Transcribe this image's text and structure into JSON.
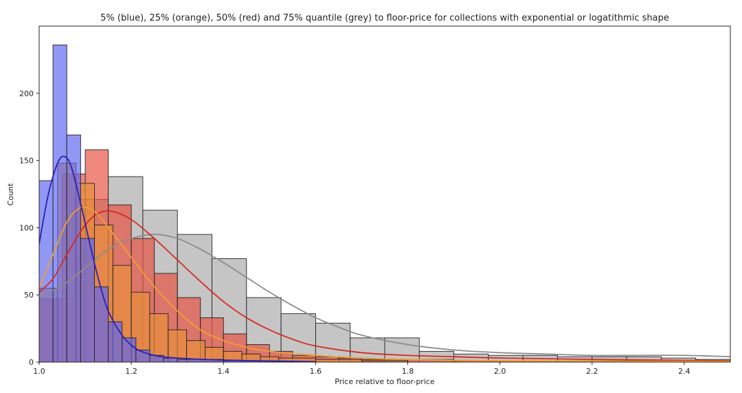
{
  "chart_data": {
    "type": "histogram",
    "title": "5% (blue), 25% (orange), 50% (red) and 75% quantile (grey) to floor-price for collections with exponential or logatithmic shape",
    "xlabel": "Price relative to floor-price",
    "ylabel": "Count",
    "xlim": [
      1.0,
      2.5
    ],
    "ylim": [
      0,
      250
    ],
    "xticks": [
      "1.0",
      "1.2",
      "1.4",
      "1.6",
      "1.8",
      "2.0",
      "2.2",
      "2.4"
    ],
    "yticks": [
      "0",
      "50",
      "100",
      "150",
      "200"
    ],
    "grid": false,
    "series": [
      {
        "name": "75% quantile",
        "color": "#a9a9a9",
        "line_color": "#8c8c8c",
        "bins": [
          {
            "x0": 1.0,
            "x1": 1.075,
            "count": 47
          },
          {
            "x0": 1.075,
            "x1": 1.15,
            "count": 121
          },
          {
            "x0": 1.15,
            "x1": 1.225,
            "count": 138
          },
          {
            "x0": 1.225,
            "x1": 1.3,
            "count": 113
          },
          {
            "x0": 1.3,
            "x1": 1.375,
            "count": 95
          },
          {
            "x0": 1.375,
            "x1": 1.45,
            "count": 77
          },
          {
            "x0": 1.45,
            "x1": 1.525,
            "count": 48
          },
          {
            "x0": 1.525,
            "x1": 1.6,
            "count": 36
          },
          {
            "x0": 1.6,
            "x1": 1.675,
            "count": 29
          },
          {
            "x0": 1.675,
            "x1": 1.75,
            "count": 18
          },
          {
            "x0": 1.75,
            "x1": 1.825,
            "count": 18
          },
          {
            "x0": 1.825,
            "x1": 1.9,
            "count": 8
          },
          {
            "x0": 1.9,
            "x1": 1.975,
            "count": 6
          },
          {
            "x0": 1.975,
            "x1": 2.05,
            "count": 5
          },
          {
            "x0": 2.05,
            "x1": 2.125,
            "count": 5
          },
          {
            "x0": 2.125,
            "x1": 2.2,
            "count": 4
          },
          {
            "x0": 2.2,
            "x1": 2.275,
            "count": 4
          },
          {
            "x0": 2.275,
            "x1": 2.35,
            "count": 4
          },
          {
            "x0": 2.35,
            "x1": 2.425,
            "count": 3
          },
          {
            "x0": 2.425,
            "x1": 2.5,
            "count": 2
          }
        ],
        "kde": [
          [
            1.0,
            48
          ],
          [
            1.05,
            57
          ],
          [
            1.1,
            70
          ],
          [
            1.15,
            84
          ],
          [
            1.2,
            92
          ],
          [
            1.25,
            95
          ],
          [
            1.3,
            92
          ],
          [
            1.35,
            84
          ],
          [
            1.4,
            74
          ],
          [
            1.45,
            63
          ],
          [
            1.5,
            52
          ],
          [
            1.55,
            42
          ],
          [
            1.6,
            33
          ],
          [
            1.65,
            26
          ],
          [
            1.7,
            20
          ],
          [
            1.8,
            13
          ],
          [
            1.9,
            9
          ],
          [
            2.0,
            7
          ],
          [
            2.1,
            6
          ],
          [
            2.2,
            5
          ],
          [
            2.3,
            5
          ],
          [
            2.4,
            5
          ],
          [
            2.5,
            4
          ]
        ]
      },
      {
        "name": "50% quantile",
        "color": "#e8503f",
        "line_color": "#d42a20",
        "bins": [
          {
            "x0": 1.0,
            "x1": 1.05,
            "count": 47
          },
          {
            "x0": 1.05,
            "x1": 1.1,
            "count": 140
          },
          {
            "x0": 1.1,
            "x1": 1.15,
            "count": 158
          },
          {
            "x0": 1.15,
            "x1": 1.2,
            "count": 117
          },
          {
            "x0": 1.2,
            "x1": 1.25,
            "count": 92
          },
          {
            "x0": 1.25,
            "x1": 1.3,
            "count": 66
          },
          {
            "x0": 1.3,
            "x1": 1.35,
            "count": 48
          },
          {
            "x0": 1.35,
            "x1": 1.4,
            "count": 33
          },
          {
            "x0": 1.4,
            "x1": 1.45,
            "count": 21
          },
          {
            "x0": 1.45,
            "x1": 1.5,
            "count": 13
          },
          {
            "x0": 1.5,
            "x1": 1.55,
            "count": 8
          },
          {
            "x0": 1.55,
            "x1": 1.6,
            "count": 5
          },
          {
            "x0": 1.6,
            "x1": 1.65,
            "count": 4
          },
          {
            "x0": 1.65,
            "x1": 1.7,
            "count": 3
          },
          {
            "x0": 1.7,
            "x1": 1.8,
            "count": 2
          },
          {
            "x0": 1.8,
            "x1": 1.9,
            "count": 2
          },
          {
            "x0": 1.9,
            "x1": 2.0,
            "count": 1
          },
          {
            "x0": 2.0,
            "x1": 2.1,
            "count": 1
          },
          {
            "x0": 2.1,
            "x1": 2.2,
            "count": 1
          },
          {
            "x0": 2.2,
            "x1": 2.3,
            "count": 1
          },
          {
            "x0": 2.3,
            "x1": 2.5,
            "count": 1
          }
        ],
        "kde": [
          [
            1.0,
            52
          ],
          [
            1.03,
            62
          ],
          [
            1.06,
            80
          ],
          [
            1.1,
            102
          ],
          [
            1.13,
            111
          ],
          [
            1.16,
            112
          ],
          [
            1.2,
            106
          ],
          [
            1.25,
            92
          ],
          [
            1.3,
            76
          ],
          [
            1.35,
            60
          ],
          [
            1.4,
            45
          ],
          [
            1.45,
            33
          ],
          [
            1.5,
            24
          ],
          [
            1.55,
            17
          ],
          [
            1.6,
            12
          ],
          [
            1.7,
            7
          ],
          [
            1.8,
            5
          ],
          [
            1.9,
            4
          ],
          [
            2.0,
            3
          ],
          [
            2.2,
            2
          ],
          [
            2.5,
            1
          ]
        ]
      },
      {
        "name": "25% quantile",
        "color": "#e8913a",
        "line_color": "#f0a030",
        "bins": [
          {
            "x0": 1.0,
            "x1": 1.04,
            "count": 55
          },
          {
            "x0": 1.04,
            "x1": 1.08,
            "count": 148
          },
          {
            "x0": 1.08,
            "x1": 1.12,
            "count": 133
          },
          {
            "x0": 1.12,
            "x1": 1.16,
            "count": 102
          },
          {
            "x0": 1.16,
            "x1": 1.2,
            "count": 72
          },
          {
            "x0": 1.2,
            "x1": 1.24,
            "count": 52
          },
          {
            "x0": 1.24,
            "x1": 1.28,
            "count": 36
          },
          {
            "x0": 1.28,
            "x1": 1.32,
            "count": 24
          },
          {
            "x0": 1.32,
            "x1": 1.36,
            "count": 16
          },
          {
            "x0": 1.36,
            "x1": 1.4,
            "count": 11
          },
          {
            "x0": 1.4,
            "x1": 1.44,
            "count": 8
          },
          {
            "x0": 1.44,
            "x1": 1.48,
            "count": 6
          },
          {
            "x0": 1.48,
            "x1": 1.52,
            "count": 4
          },
          {
            "x0": 1.52,
            "x1": 1.6,
            "count": 3
          },
          {
            "x0": 1.6,
            "x1": 1.7,
            "count": 2
          },
          {
            "x0": 1.7,
            "x1": 1.8,
            "count": 1
          }
        ],
        "kde": [
          [
            1.0,
            55
          ],
          [
            1.03,
            80
          ],
          [
            1.06,
            104
          ],
          [
            1.09,
            115
          ],
          [
            1.12,
            112
          ],
          [
            1.15,
            100
          ],
          [
            1.2,
            78
          ],
          [
            1.25,
            56
          ],
          [
            1.3,
            38
          ],
          [
            1.35,
            24
          ],
          [
            1.4,
            16
          ],
          [
            1.45,
            11
          ],
          [
            1.5,
            8
          ],
          [
            1.6,
            5
          ],
          [
            1.7,
            3
          ],
          [
            1.8,
            2
          ],
          [
            2.0,
            1
          ],
          [
            2.5,
            0.5
          ]
        ]
      },
      {
        "name": "5% quantile",
        "color": "#5d66f0",
        "line_color": "#2a1fb8",
        "bins": [
          {
            "x0": 1.0,
            "x1": 1.03,
            "count": 135
          },
          {
            "x0": 1.03,
            "x1": 1.06,
            "count": 236
          },
          {
            "x0": 1.06,
            "x1": 1.09,
            "count": 169
          },
          {
            "x0": 1.09,
            "x1": 1.12,
            "count": 92
          },
          {
            "x0": 1.12,
            "x1": 1.15,
            "count": 56
          },
          {
            "x0": 1.15,
            "x1": 1.18,
            "count": 30
          },
          {
            "x0": 1.18,
            "x1": 1.21,
            "count": 18
          },
          {
            "x0": 1.21,
            "x1": 1.24,
            "count": 9
          },
          {
            "x0": 1.24,
            "x1": 1.27,
            "count": 5
          },
          {
            "x0": 1.27,
            "x1": 1.3,
            "count": 3
          },
          {
            "x0": 1.3,
            "x1": 1.4,
            "count": 2
          },
          {
            "x0": 1.4,
            "x1": 1.5,
            "count": 1
          }
        ],
        "kde": [
          [
            1.0,
            88
          ],
          [
            1.02,
            125
          ],
          [
            1.04,
            148
          ],
          [
            1.055,
            153
          ],
          [
            1.07,
            145
          ],
          [
            1.09,
            118
          ],
          [
            1.11,
            88
          ],
          [
            1.13,
            60
          ],
          [
            1.15,
            38
          ],
          [
            1.18,
            20
          ],
          [
            1.21,
            10
          ],
          [
            1.25,
            5
          ],
          [
            1.3,
            3
          ],
          [
            1.4,
            1.5
          ],
          [
            1.5,
            0.8
          ],
          [
            1.6,
            0.3
          ]
        ]
      }
    ]
  }
}
